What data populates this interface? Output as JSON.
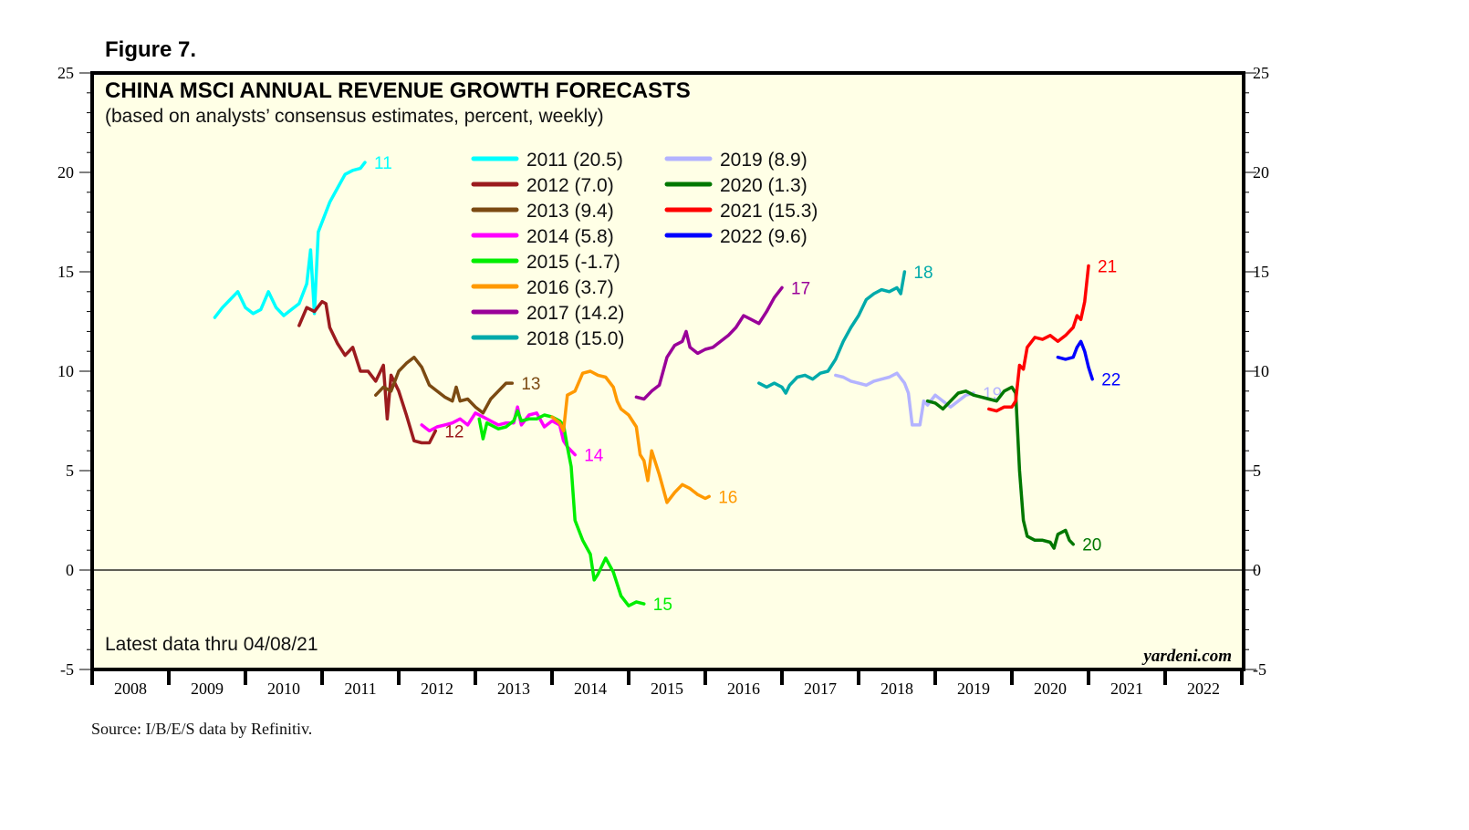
{
  "figure_label": "Figure 7.",
  "chart_data": {
    "type": "line",
    "title": "CHINA MSCI ANNUAL REVENUE GROWTH FORECASTS",
    "subtitle": "(based on analysts’ consensus estimates, percent, weekly)",
    "xlabel": "",
    "ylabel": "",
    "xlim": [
      2008,
      2023
    ],
    "ylim": [
      -5,
      25
    ],
    "yticks": [
      -5,
      0,
      5,
      10,
      15,
      20,
      25
    ],
    "ytick_labels": [
      "-5",
      "0",
      "5",
      "10",
      "15",
      "20",
      "25"
    ],
    "y_minor_step": 1,
    "xtick_labels": [
      "2008",
      "2009",
      "2010",
      "2011",
      "2012",
      "2013",
      "2014",
      "2015",
      "2016",
      "2017",
      "2018",
      "2019",
      "2020",
      "2021",
      "2022"
    ],
    "zero_line": true,
    "grid": false,
    "legend_position": "top-center",
    "note": "Latest data thru 04/08/21",
    "brand": "yardeni.com",
    "source": "Source: I/B/E/S data by Refinitiv.",
    "background_color": "#ffffe6",
    "series": [
      {
        "name": "2011 (20.5)",
        "end_label": "11",
        "color": "#00ffff",
        "points": [
          [
            2009.6,
            12.7
          ],
          [
            2009.7,
            13.2
          ],
          [
            2009.8,
            13.6
          ],
          [
            2009.9,
            14.0
          ],
          [
            2010.0,
            13.2
          ],
          [
            2010.1,
            12.9
          ],
          [
            2010.2,
            13.1
          ],
          [
            2010.3,
            14.0
          ],
          [
            2010.4,
            13.2
          ],
          [
            2010.5,
            12.8
          ],
          [
            2010.6,
            13.1
          ],
          [
            2010.7,
            13.4
          ],
          [
            2010.8,
            14.4
          ],
          [
            2010.85,
            16.1
          ],
          [
            2010.9,
            12.9
          ],
          [
            2010.95,
            17.0
          ],
          [
            2011.0,
            17.5
          ],
          [
            2011.1,
            18.5
          ],
          [
            2011.2,
            19.2
          ],
          [
            2011.3,
            19.9
          ],
          [
            2011.4,
            20.1
          ],
          [
            2011.5,
            20.2
          ],
          [
            2011.56,
            20.5
          ]
        ]
      },
      {
        "name": "2012 (7.0)",
        "end_label": "12",
        "color": "#9b1b1e",
        "points": [
          [
            2010.7,
            12.3
          ],
          [
            2010.8,
            13.2
          ],
          [
            2010.9,
            13.0
          ],
          [
            2011.0,
            13.5
          ],
          [
            2011.05,
            13.4
          ],
          [
            2011.1,
            12.2
          ],
          [
            2011.2,
            11.4
          ],
          [
            2011.3,
            10.8
          ],
          [
            2011.4,
            11.2
          ],
          [
            2011.5,
            10.0
          ],
          [
            2011.6,
            10.0
          ],
          [
            2011.7,
            9.5
          ],
          [
            2011.8,
            10.3
          ],
          [
            2011.85,
            7.6
          ],
          [
            2011.9,
            9.8
          ],
          [
            2012.0,
            9.0
          ],
          [
            2012.1,
            7.8
          ],
          [
            2012.2,
            6.5
          ],
          [
            2012.3,
            6.4
          ],
          [
            2012.4,
            6.4
          ],
          [
            2012.48,
            7.0
          ]
        ]
      },
      {
        "name": "2013 (9.4)",
        "end_label": "13",
        "color": "#7b4a12",
        "points": [
          [
            2011.7,
            8.8
          ],
          [
            2011.8,
            9.2
          ],
          [
            2011.9,
            9.0
          ],
          [
            2012.0,
            10.0
          ],
          [
            2012.1,
            10.4
          ],
          [
            2012.2,
            10.7
          ],
          [
            2012.3,
            10.2
          ],
          [
            2012.4,
            9.3
          ],
          [
            2012.5,
            9.0
          ],
          [
            2012.6,
            8.7
          ],
          [
            2012.7,
            8.5
          ],
          [
            2012.75,
            9.2
          ],
          [
            2012.8,
            8.5
          ],
          [
            2012.9,
            8.6
          ],
          [
            2013.0,
            8.2
          ],
          [
            2013.1,
            7.9
          ],
          [
            2013.2,
            8.6
          ],
          [
            2013.3,
            9.0
          ],
          [
            2013.4,
            9.4
          ],
          [
            2013.48,
            9.4
          ]
        ]
      },
      {
        "name": "2014 (5.8)",
        "end_label": "14",
        "color": "#ff00ff",
        "points": [
          [
            2012.3,
            7.3
          ],
          [
            2012.4,
            7.0
          ],
          [
            2012.5,
            7.2
          ],
          [
            2012.6,
            7.3
          ],
          [
            2012.7,
            7.4
          ],
          [
            2012.8,
            7.6
          ],
          [
            2012.9,
            7.3
          ],
          [
            2013.0,
            7.9
          ],
          [
            2013.1,
            7.7
          ],
          [
            2013.2,
            7.5
          ],
          [
            2013.3,
            7.3
          ],
          [
            2013.4,
            7.4
          ],
          [
            2013.5,
            7.4
          ],
          [
            2013.55,
            8.2
          ],
          [
            2013.6,
            7.3
          ],
          [
            2013.7,
            7.8
          ],
          [
            2013.8,
            7.9
          ],
          [
            2013.9,
            7.2
          ],
          [
            2014.0,
            7.5
          ],
          [
            2014.1,
            7.3
          ],
          [
            2014.15,
            6.5
          ],
          [
            2014.2,
            6.2
          ],
          [
            2014.3,
            5.8
          ]
        ]
      },
      {
        "name": "2015 (-1.7)",
        "end_label": "15",
        "color": "#00ee00",
        "points": [
          [
            2013.05,
            7.6
          ],
          [
            2013.1,
            6.6
          ],
          [
            2013.15,
            7.4
          ],
          [
            2013.3,
            7.1
          ],
          [
            2013.4,
            7.2
          ],
          [
            2013.5,
            7.5
          ],
          [
            2013.55,
            8.0
          ],
          [
            2013.6,
            7.5
          ],
          [
            2013.7,
            7.6
          ],
          [
            2013.8,
            7.6
          ],
          [
            2013.9,
            7.8
          ],
          [
            2014.0,
            7.7
          ],
          [
            2014.1,
            7.5
          ],
          [
            2014.15,
            7.3
          ],
          [
            2014.2,
            6.2
          ],
          [
            2014.25,
            5.2
          ],
          [
            2014.3,
            2.5
          ],
          [
            2014.4,
            1.5
          ],
          [
            2014.5,
            0.8
          ],
          [
            2014.55,
            -0.5
          ],
          [
            2014.6,
            -0.2
          ],
          [
            2014.7,
            0.6
          ],
          [
            2014.8,
            -0.1
          ],
          [
            2014.9,
            -1.3
          ],
          [
            2015.0,
            -1.8
          ],
          [
            2015.1,
            -1.6
          ],
          [
            2015.2,
            -1.7
          ]
        ]
      },
      {
        "name": "2016 (3.7)",
        "end_label": "16",
        "color": "#ff9900",
        "points": [
          [
            2014.0,
            7.7
          ],
          [
            2014.1,
            7.4
          ],
          [
            2014.15,
            7.0
          ],
          [
            2014.2,
            8.8
          ],
          [
            2014.3,
            9.0
          ],
          [
            2014.4,
            9.9
          ],
          [
            2014.5,
            10.0
          ],
          [
            2014.6,
            9.8
          ],
          [
            2014.7,
            9.7
          ],
          [
            2014.8,
            9.2
          ],
          [
            2014.85,
            8.5
          ],
          [
            2014.9,
            8.1
          ],
          [
            2015.0,
            7.8
          ],
          [
            2015.1,
            7.2
          ],
          [
            2015.15,
            5.8
          ],
          [
            2015.2,
            5.5
          ],
          [
            2015.25,
            4.5
          ],
          [
            2015.3,
            6.0
          ],
          [
            2015.4,
            4.8
          ],
          [
            2015.5,
            3.4
          ],
          [
            2015.6,
            3.9
          ],
          [
            2015.7,
            4.3
          ],
          [
            2015.8,
            4.1
          ],
          [
            2015.9,
            3.8
          ],
          [
            2016.0,
            3.6
          ],
          [
            2016.05,
            3.7
          ]
        ]
      },
      {
        "name": "2017 (14.2)",
        "end_label": "17",
        "color": "#990099",
        "points": [
          [
            2015.1,
            8.7
          ],
          [
            2015.2,
            8.6
          ],
          [
            2015.3,
            9.0
          ],
          [
            2015.4,
            9.3
          ],
          [
            2015.5,
            10.7
          ],
          [
            2015.6,
            11.3
          ],
          [
            2015.7,
            11.5
          ],
          [
            2015.75,
            12.0
          ],
          [
            2015.8,
            11.2
          ],
          [
            2015.9,
            10.9
          ],
          [
            2016.0,
            11.1
          ],
          [
            2016.1,
            11.2
          ],
          [
            2016.2,
            11.5
          ],
          [
            2016.3,
            11.8
          ],
          [
            2016.4,
            12.2
          ],
          [
            2016.5,
            12.8
          ],
          [
            2016.6,
            12.6
          ],
          [
            2016.7,
            12.4
          ],
          [
            2016.8,
            13.0
          ],
          [
            2016.9,
            13.7
          ],
          [
            2017.0,
            14.2
          ]
        ]
      },
      {
        "name": "2018 (15.0)",
        "end_label": "18",
        "color": "#00aaaa",
        "points": [
          [
            2016.7,
            9.4
          ],
          [
            2016.8,
            9.2
          ],
          [
            2016.9,
            9.4
          ],
          [
            2017.0,
            9.2
          ],
          [
            2017.05,
            8.9
          ],
          [
            2017.1,
            9.3
          ],
          [
            2017.2,
            9.7
          ],
          [
            2017.3,
            9.8
          ],
          [
            2017.4,
            9.6
          ],
          [
            2017.5,
            9.9
          ],
          [
            2017.6,
            10.0
          ],
          [
            2017.7,
            10.6
          ],
          [
            2017.8,
            11.5
          ],
          [
            2017.9,
            12.2
          ],
          [
            2018.0,
            12.8
          ],
          [
            2018.1,
            13.6
          ],
          [
            2018.2,
            13.9
          ],
          [
            2018.3,
            14.1
          ],
          [
            2018.4,
            14.0
          ],
          [
            2018.5,
            14.2
          ],
          [
            2018.55,
            13.9
          ],
          [
            2018.6,
            15.0
          ]
        ]
      },
      {
        "name": "2019 (8.9)",
        "end_label": "19",
        "color": "#b3b3ff",
        "points": [
          [
            2017.7,
            9.8
          ],
          [
            2017.8,
            9.7
          ],
          [
            2017.9,
            9.5
          ],
          [
            2018.0,
            9.4
          ],
          [
            2018.1,
            9.3
          ],
          [
            2018.2,
            9.5
          ],
          [
            2018.3,
            9.6
          ],
          [
            2018.4,
            9.7
          ],
          [
            2018.5,
            9.9
          ],
          [
            2018.6,
            9.4
          ],
          [
            2018.65,
            8.9
          ],
          [
            2018.7,
            7.3
          ],
          [
            2018.8,
            7.3
          ],
          [
            2018.85,
            8.5
          ],
          [
            2018.9,
            8.3
          ],
          [
            2019.0,
            8.8
          ],
          [
            2019.1,
            8.5
          ],
          [
            2019.2,
            8.2
          ],
          [
            2019.3,
            8.5
          ],
          [
            2019.4,
            8.8
          ],
          [
            2019.5,
            8.9
          ]
        ]
      },
      {
        "name": "2020 (1.3)",
        "end_label": "20",
        "color": "#007700",
        "points": [
          [
            2018.9,
            8.5
          ],
          [
            2019.0,
            8.4
          ],
          [
            2019.1,
            8.1
          ],
          [
            2019.2,
            8.5
          ],
          [
            2019.3,
            8.9
          ],
          [
            2019.4,
            9.0
          ],
          [
            2019.5,
            8.8
          ],
          [
            2019.6,
            8.7
          ],
          [
            2019.7,
            8.6
          ],
          [
            2019.8,
            8.5
          ],
          [
            2019.9,
            9.0
          ],
          [
            2020.0,
            9.2
          ],
          [
            2020.05,
            8.9
          ],
          [
            2020.1,
            5.0
          ],
          [
            2020.15,
            2.5
          ],
          [
            2020.2,
            1.7
          ],
          [
            2020.3,
            1.5
          ],
          [
            2020.4,
            1.5
          ],
          [
            2020.5,
            1.4
          ],
          [
            2020.55,
            1.1
          ],
          [
            2020.6,
            1.8
          ],
          [
            2020.7,
            2.0
          ],
          [
            2020.75,
            1.5
          ],
          [
            2020.8,
            1.3
          ]
        ]
      },
      {
        "name": "2021 (15.3)",
        "end_label": "21",
        "color": "#ff0000",
        "points": [
          [
            2019.7,
            8.1
          ],
          [
            2019.8,
            8.0
          ],
          [
            2019.9,
            8.2
          ],
          [
            2020.0,
            8.2
          ],
          [
            2020.05,
            8.5
          ],
          [
            2020.1,
            10.3
          ],
          [
            2020.15,
            10.1
          ],
          [
            2020.2,
            11.2
          ],
          [
            2020.3,
            11.7
          ],
          [
            2020.4,
            11.6
          ],
          [
            2020.5,
            11.8
          ],
          [
            2020.6,
            11.5
          ],
          [
            2020.7,
            11.8
          ],
          [
            2020.8,
            12.2
          ],
          [
            2020.85,
            12.8
          ],
          [
            2020.9,
            12.6
          ],
          [
            2020.95,
            13.5
          ],
          [
            2021.0,
            15.3
          ]
        ]
      },
      {
        "name": "2022 (9.6)",
        "end_label": "22",
        "color": "#0000ff",
        "points": [
          [
            2020.6,
            10.7
          ],
          [
            2020.7,
            10.6
          ],
          [
            2020.8,
            10.7
          ],
          [
            2020.85,
            11.2
          ],
          [
            2020.9,
            11.5
          ],
          [
            2020.95,
            11.0
          ],
          [
            2021.0,
            10.2
          ],
          [
            2021.05,
            9.6
          ]
        ]
      }
    ]
  }
}
